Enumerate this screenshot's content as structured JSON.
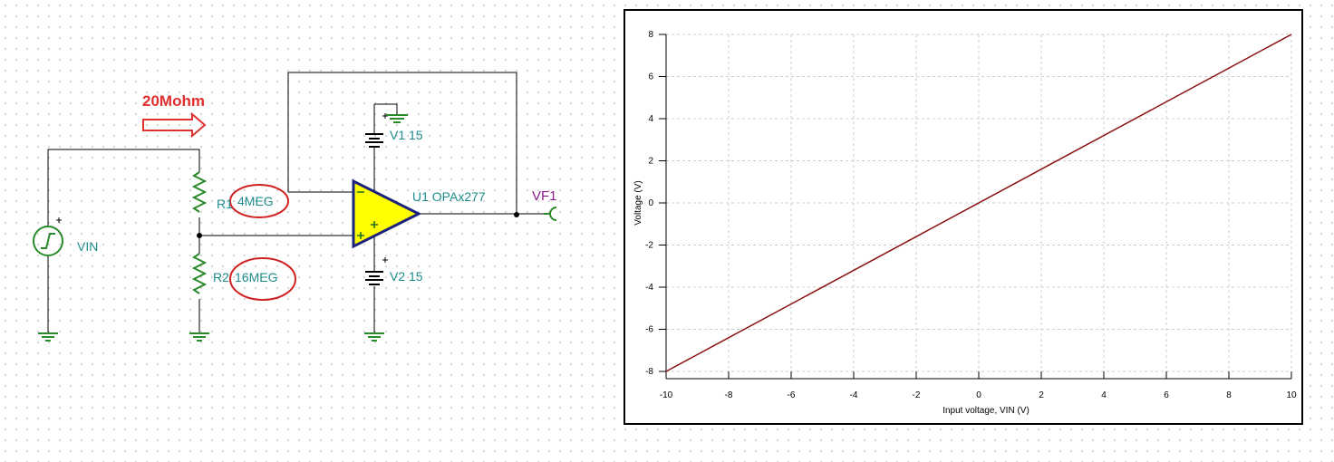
{
  "schematic": {
    "annotation": "20Mohm",
    "source": "VIN",
    "r1_name": "R1",
    "r1_value": "4MEG",
    "r2_name": "R2",
    "r2_value": "16MEG",
    "v1": "V1 15",
    "v2": "V2 15",
    "opamp": "U1 OPAx277",
    "probe": "VF1"
  },
  "chart_data": {
    "type": "line",
    "x": [
      -10,
      10
    ],
    "values": [
      -8,
      8
    ],
    "color": "#8b1010",
    "xlabel": "Input voltage, VIN (V)",
    "ylabel": "Voltage (V)",
    "xlim": [
      -10,
      10
    ],
    "ylim": [
      -8,
      8
    ],
    "xticks": [
      -10,
      -8,
      -6,
      -4,
      -2,
      0,
      2,
      4,
      6,
      8,
      10
    ],
    "yticks": [
      -8,
      -6,
      -4,
      -2,
      0,
      2,
      4,
      6,
      8
    ],
    "grid": true
  }
}
